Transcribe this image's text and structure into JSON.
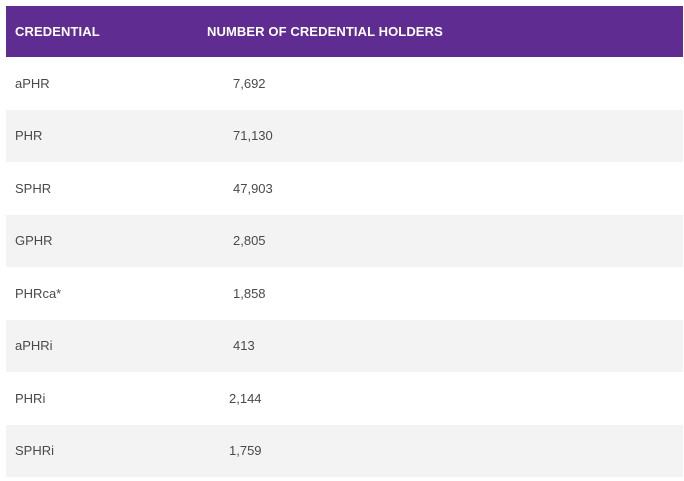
{
  "table": {
    "headers": {
      "credential": "CREDENTIAL",
      "holders": "NUMBER OF CREDENTIAL HOLDERS"
    },
    "rows": [
      {
        "credential": "aPHR",
        "holders": "7,692"
      },
      {
        "credential": "PHR",
        "holders": "71,130"
      },
      {
        "credential": "SPHR",
        "holders": "47,903"
      },
      {
        "credential": "GPHR",
        "holders": "2,805"
      },
      {
        "credential": "PHRca*",
        "holders": "1,858"
      },
      {
        "credential": "aPHRi",
        "holders": "413"
      },
      {
        "credential": "PHRi",
        "holders": "2,144"
      },
      {
        "credential": "SPHRi",
        "holders": "1,759"
      }
    ]
  },
  "colors": {
    "header_bg": "#5f2d91",
    "header_text": "#ffffff",
    "row_alt_bg": "#f3f3f3",
    "text": "#4a4a4a"
  }
}
